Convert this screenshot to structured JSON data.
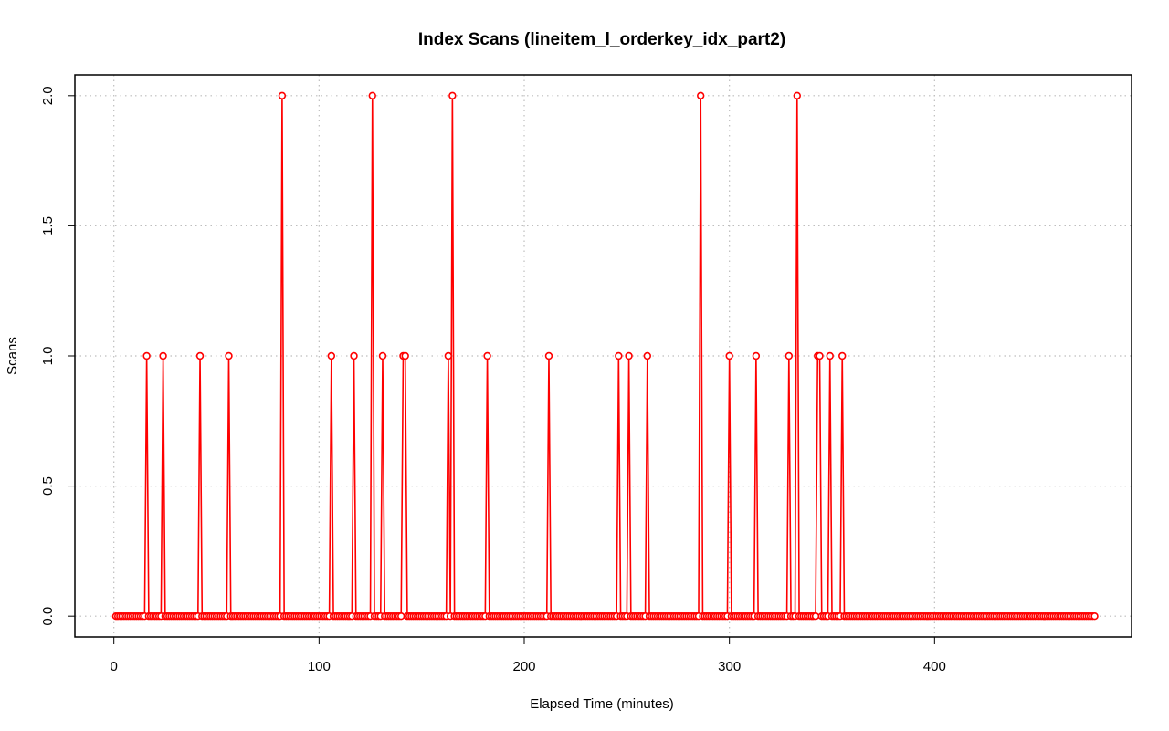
{
  "chart_data": {
    "type": "line",
    "title": "Index Scans (lineitem_l_orderkey_idx_part2)",
    "xlabel": "Elapsed Time (minutes)",
    "ylabel": "Scans",
    "xlim": [
      -19,
      496
    ],
    "ylim": [
      -0.08,
      2.08
    ],
    "x_ticks": [
      0,
      100,
      200,
      300,
      400
    ],
    "y_ticks": [
      0.0,
      0.5,
      1.0,
      1.5,
      2.0
    ],
    "x_tick_labels": [
      "0",
      "100",
      "200",
      "300",
      "400"
    ],
    "y_tick_labels": [
      "0.0",
      "0.5",
      "1.0",
      "1.5",
      "2.0"
    ],
    "grid": true,
    "series_color": "#ff0000",
    "grid_color": "#bebebe",
    "x_range": [
      1,
      478
    ],
    "x_step": 1,
    "spikes": [
      {
        "x": 16,
        "y": 1
      },
      {
        "x": 24,
        "y": 1
      },
      {
        "x": 42,
        "y": 1
      },
      {
        "x": 56,
        "y": 1
      },
      {
        "x": 82,
        "y": 2
      },
      {
        "x": 106,
        "y": 1
      },
      {
        "x": 117,
        "y": 1
      },
      {
        "x": 126,
        "y": 2
      },
      {
        "x": 131,
        "y": 1
      },
      {
        "x": 141,
        "y": 1
      },
      {
        "x": 142,
        "y": 1
      },
      {
        "x": 163,
        "y": 1
      },
      {
        "x": 165,
        "y": 2
      },
      {
        "x": 182,
        "y": 1
      },
      {
        "x": 212,
        "y": 1
      },
      {
        "x": 246,
        "y": 1
      },
      {
        "x": 251,
        "y": 1
      },
      {
        "x": 260,
        "y": 1
      },
      {
        "x": 286,
        "y": 2
      },
      {
        "x": 300,
        "y": 1
      },
      {
        "x": 313,
        "y": 1
      },
      {
        "x": 329,
        "y": 1
      },
      {
        "x": 333,
        "y": 2
      },
      {
        "x": 343,
        "y": 1
      },
      {
        "x": 344,
        "y": 1
      },
      {
        "x": 349,
        "y": 1
      },
      {
        "x": 355,
        "y": 1
      }
    ]
  }
}
